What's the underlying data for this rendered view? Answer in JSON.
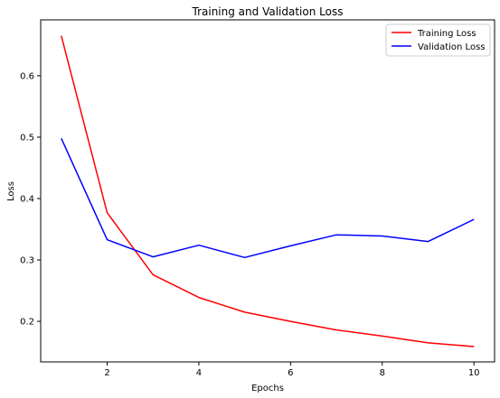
{
  "chart_data": {
    "type": "line",
    "title": "Training and Validation Loss",
    "xlabel": "Epochs",
    "ylabel": "Loss",
    "x": [
      1,
      2,
      3,
      4,
      5,
      6,
      7,
      8,
      9,
      10
    ],
    "xlim": [
      0.55,
      10.45
    ],
    "ylim": [
      0.134,
      0.691
    ],
    "xticks": [
      2,
      4,
      6,
      8,
      10
    ],
    "yticks": [
      0.2,
      0.3,
      0.4,
      0.5,
      0.6
    ],
    "xtick_labels": [
      "2",
      "4",
      "6",
      "8",
      "10"
    ],
    "ytick_labels": [
      "0.2",
      "0.3",
      "0.4",
      "0.5",
      "0.6"
    ],
    "grid": false,
    "legend_position": "top-right",
    "series": [
      {
        "name": "Training Loss",
        "color": "#ff0000",
        "values": [
          0.665,
          0.377,
          0.276,
          0.239,
          0.215,
          0.2,
          0.186,
          0.176,
          0.165,
          0.159
        ]
      },
      {
        "name": "Validation Loss",
        "color": "#0000ff",
        "values": [
          0.498,
          0.333,
          0.305,
          0.324,
          0.304,
          0.323,
          0.341,
          0.339,
          0.33,
          0.366
        ]
      }
    ]
  }
}
